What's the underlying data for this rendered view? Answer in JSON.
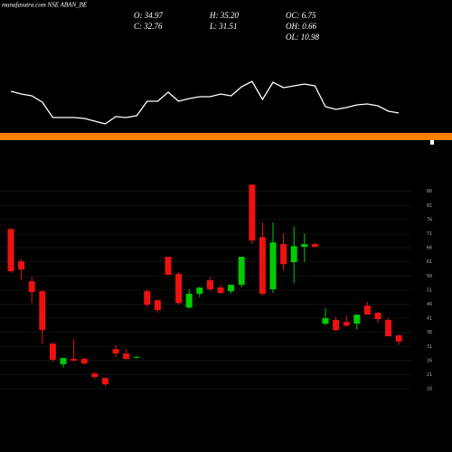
{
  "chart_data": {
    "type": "candlestick",
    "title": "munafasutra.com NSE ABAN_BE",
    "stats": [
      "O: 34.97",
      "H: 35.20",
      "OC: 6.75",
      "C: 32.76",
      "L: 31.51",
      "OH: 0.66",
      "OL: 10.98"
    ],
    "open": [
      72.7,
      61.2,
      54.1,
      50.6,
      32,
      24.7,
      26.6,
      26.6,
      21.4,
      19.8,
      30.1,
      28.5,
      27.0,
      50.6,
      47.4,
      62.8,
      56.7,
      44.8,
      49.7,
      54.5,
      51.9,
      50.6,
      52.9,
      88.4,
      69.8,
      51.3,
      67.3,
      60.9,
      66.3,
      67.3,
      39.1,
      40.4,
      39.7,
      39.1,
      45.5,
      42.9,
      40.4,
      34.97
    ],
    "high": [
      72.7,
      62,
      55.7,
      51,
      32.3,
      27,
      33.6,
      27,
      22,
      20,
      31.4,
      30.1,
      27.5,
      51.3,
      47.4,
      62.8,
      57.5,
      51.3,
      52,
      55.7,
      53,
      52.9,
      62.8,
      88.4,
      75,
      75,
      71,
      73.5,
      71,
      67.8,
      44.5,
      41.5,
      42,
      42.3,
      46.8,
      43.3,
      41,
      35.2
    ],
    "low": [
      57,
      54.5,
      46.4,
      32,
      25.6,
      23.5,
      25.6,
      24.6,
      19.5,
      17,
      27.2,
      26.3,
      26.8,
      44.8,
      42.9,
      56.4,
      45.8,
      44.4,
      48.5,
      50.6,
      49.7,
      49.7,
      52,
      67.3,
      49,
      50,
      58,
      53.5,
      61,
      67,
      38.4,
      36.5,
      38,
      37,
      42.3,
      39.5,
      34.6,
      31.51
    ],
    "close": [
      57.7,
      58.3,
      50.3,
      36.8,
      26.3,
      26.9,
      26.0,
      25.0,
      20.2,
      17.6,
      28.5,
      26.6,
      27.3,
      45.8,
      43.9,
      56.4,
      46.4,
      49.7,
      51.9,
      51.3,
      50.0,
      52.9,
      62.8,
      68.6,
      49.7,
      67.9,
      60.2,
      66.6,
      67.3,
      66.3,
      41,
      36.8,
      38.4,
      42.3,
      42.3,
      40.7,
      34.6,
      32.76
    ],
    "up_color": "#00cc00",
    "down_color": "#ee1111",
    "ylim": [
      8,
      92
    ],
    "yticks": [
      16,
      21,
      26,
      31,
      36,
      41,
      46,
      51,
      56,
      61,
      66,
      71,
      76,
      81,
      86
    ],
    "grid": true,
    "indicator": {
      "values": [
        99,
        96,
        94,
        87,
        70,
        70,
        70,
        69,
        66,
        63,
        71,
        70,
        72,
        88,
        88,
        98,
        88,
        91,
        93,
        93,
        96,
        94,
        104,
        110,
        90,
        109,
        103,
        105,
        107,
        105,
        82,
        79,
        81,
        84,
        85,
        83,
        77,
        75
      ],
      "ylim": [
        40,
        120
      ],
      "color": "#ffffff"
    },
    "band_color": "#ff8000"
  }
}
